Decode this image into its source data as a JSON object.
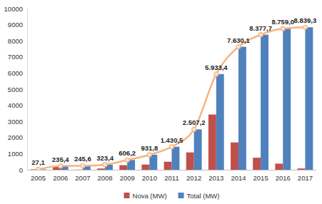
{
  "chart_data": {
    "type": "bar",
    "categories": [
      "2005",
      "2006",
      "2007",
      "2008",
      "2009",
      "2010",
      "2011",
      "2012",
      "2013",
      "2014",
      "2015",
      "2016",
      "2017"
    ],
    "series": [
      {
        "name": "Nova (MW)",
        "type": "bar",
        "color": "#c0504d",
        "values": [
          27.1,
          208.3,
          10.2,
          77.8,
          282.8,
          325.6,
          498.7,
          1076.7,
          3426.2,
          1696.7,
          747.6,
          381.3,
          80.3
        ]
      },
      {
        "name": "Total (MW)",
        "type": "bar",
        "color": "#4f81bd",
        "values": [
          27.1,
          235.4,
          245.6,
          323.4,
          606.2,
          931.8,
          1430.5,
          2507.2,
          5933.4,
          7630.1,
          8377.7,
          8759.0,
          8839.3
        ]
      },
      {
        "type": "line",
        "color": "#f5b57f",
        "marker": "circle",
        "line_style": "solid",
        "data_labels": true,
        "values": [
          27.1,
          235.4,
          245.6,
          323.4,
          606.2,
          931.8,
          1430.5,
          2507.2,
          5933.4,
          7630.1,
          8377.7,
          8759.0,
          8839.3
        ],
        "value_labels": [
          "27,1",
          "235,4",
          "245,6",
          "323,4",
          "606,2",
          "931,8",
          "1.430,5",
          "2.507,2",
          "5.933,4",
          "7.630,1",
          "8.377,7",
          "8.759,0",
          "8.839,3"
        ]
      }
    ],
    "ylim": [
      0,
      10000
    ],
    "yticks": [
      0,
      1000,
      2000,
      3000,
      4000,
      5000,
      6000,
      7000,
      8000,
      9000,
      10000
    ],
    "grid": false,
    "legend": "bottom"
  }
}
